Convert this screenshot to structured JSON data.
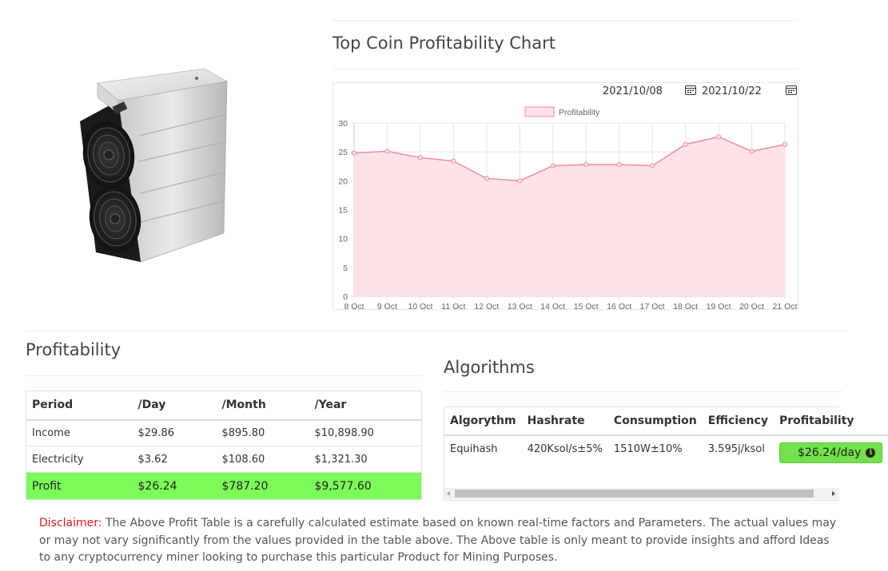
{
  "chart_section": {
    "title": "Top Coin Profitability Chart",
    "date_from": "2021/10/08",
    "date_to": "2021/10/22"
  },
  "colors": {
    "profit_green": "#7cfc58",
    "pill_green": "#73e14b",
    "series_line": "#f08ca2",
    "series_fill": "#fde2e8",
    "disclaimer_red": "#e8141b"
  },
  "chart_data": {
    "type": "area",
    "title": "",
    "xlabel": "",
    "ylabel": "",
    "categories": [
      "8 Oct",
      "9 Oct",
      "10 Oct",
      "11 Oct",
      "12 Oct",
      "13 Oct",
      "14 Oct",
      "15 Oct",
      "16 Oct",
      "17 Oct",
      "18 Oct",
      "19 Oct",
      "20 Oct",
      "21 Oct"
    ],
    "series": [
      {
        "name": "Profitability",
        "values": [
          24.8,
          25.1,
          24.0,
          23.4,
          20.4,
          20.0,
          22.6,
          22.8,
          22.8,
          22.6,
          26.3,
          27.6,
          25.1,
          26.3
        ]
      }
    ],
    "ylim": [
      0,
      30
    ],
    "yticks": [
      0,
      5,
      10,
      15,
      20,
      25,
      30
    ],
    "legend": "top-center",
    "grid": true
  },
  "profitability": {
    "title": "Profitability",
    "headers": [
      "Period",
      "/Day",
      "/Month",
      "/Year"
    ],
    "rows": [
      [
        "Income",
        "$29.86",
        "$895.80",
        "$10,898.90"
      ],
      [
        "Electricity",
        "$3.62",
        "$108.60",
        "$1,321.30"
      ],
      [
        "Profit",
        "$26.24",
        "$787.20",
        "$9,577.60"
      ]
    ]
  },
  "algorithms": {
    "title": "Algorithms",
    "headers": [
      "Algorythm",
      "Hashrate",
      "Consumption",
      "Efficiency",
      "Profitability"
    ],
    "row": {
      "algorithm": "Equihash",
      "hashrate": "420Ksol/s±5%",
      "consumption": "1510W±10%",
      "efficiency": "3.595j/ksol",
      "profitability": "$26.24/day",
      "info_icon": "info-circle-icon"
    }
  },
  "disclaimer": {
    "label": "Disclaimer:",
    "text": " The Above Profit Table is a carefully calculated estimate based on known real-time factors and Parameters. The actual values may or may not vary significantly from the values provided in the table above. The Above table is only meant to provide insights and afford Ideas to any cryptocurrency miner looking to purchase this particular Product for Mining Purposes."
  }
}
